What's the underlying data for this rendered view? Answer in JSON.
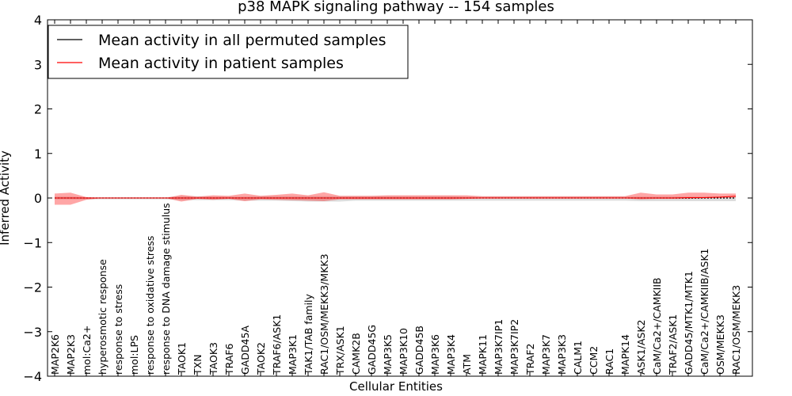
{
  "chart_data": {
    "type": "line",
    "title": "p38 MAPK signaling pathway -- 154 samples",
    "xlabel": "Cellular Entities",
    "ylabel": "Inferred Activity",
    "ylim": [
      -4,
      4
    ],
    "yticks": [
      "−4",
      "−3",
      "−2",
      "−1",
      "0",
      "1",
      "2",
      "3",
      "4"
    ],
    "grid": false,
    "legend_position": "top-left",
    "categories": [
      "MAP2K6",
      "MAP2K3",
      "mol:Ca2+",
      "hyperosmotic response",
      "response to stress",
      "mol:LPS",
      "response to oxidative stress",
      "response to DNA damage stimulus",
      "TAOK1",
      "TXN",
      "TAOK3",
      "TRAF6",
      "GADD45A",
      "TAOK2",
      "TRAF6/ASK1",
      "MAP3K1",
      "TAK1/TAB family",
      "RAC1/OSM/MEKK3/MKK3",
      "TRX/ASK1",
      "CAMK2B",
      "GADD45G",
      "MAP3K5",
      "MAP3K10",
      "GADD45B",
      "MAP3K6",
      "MAP3K4",
      "ATM",
      "MAPK11",
      "MAP3K7IP1",
      "MAP3K7IP2",
      "TRAF2",
      "MAP3K7",
      "MAP3K3",
      "CALM1",
      "CCM2",
      "RAC1",
      "MAPK14",
      "ASK1/ASK2",
      "CaM/Ca2+/CAMKIIB",
      "TRAF2/ASK1",
      "GADD45/MTK1/MTK1",
      "CaM/Ca2+/CAMKIIB/ASK1",
      "OSM/MEKK3",
      "RAC1/OSM/MEKK3"
    ],
    "series": [
      {
        "name": "Mean activity in all permuted samples",
        "color": "#000000",
        "values": [
          0,
          0,
          0,
          0,
          0,
          0,
          0,
          0,
          0,
          0,
          0,
          0,
          0,
          0,
          0,
          0,
          0,
          0,
          0,
          0,
          0,
          0,
          0,
          0,
          0,
          0,
          0,
          0,
          0,
          0,
          0,
          0,
          0,
          0,
          0,
          0,
          0,
          0,
          0,
          0,
          0,
          0,
          0,
          0
        ],
        "band_upper": [
          0.03,
          0.03,
          0.02,
          0.02,
          0.02,
          0.02,
          0.02,
          0.02,
          0.04,
          0.04,
          0.03,
          0.03,
          0.03,
          0.04,
          0.04,
          0.04,
          0.04,
          0.04,
          0.04,
          0.04,
          0.04,
          0.04,
          0.04,
          0.04,
          0.04,
          0.04,
          0.03,
          0.03,
          0.03,
          0.03,
          0.03,
          0.03,
          0.03,
          0.03,
          0.03,
          0.03,
          0.03,
          0.03,
          0.03,
          0.03,
          0.03,
          0.03,
          0.03,
          0.03
        ],
        "band_lower": [
          -0.03,
          -0.03,
          -0.03,
          -0.03,
          -0.03,
          -0.03,
          -0.03,
          -0.03,
          -0.05,
          -0.05,
          -0.05,
          -0.05,
          -0.06,
          -0.06,
          -0.06,
          -0.07,
          -0.08,
          -0.08,
          -0.08,
          -0.06,
          -0.06,
          -0.06,
          -0.06,
          -0.06,
          -0.06,
          -0.06,
          -0.06,
          -0.06,
          -0.06,
          -0.06,
          -0.06,
          -0.06,
          -0.06,
          -0.06,
          -0.06,
          -0.06,
          -0.06,
          -0.07,
          -0.07,
          -0.07,
          -0.07,
          -0.07,
          -0.07,
          -0.07
        ]
      },
      {
        "name": "Mean activity in patient samples",
        "color": "#ff0000",
        "values": [
          0,
          0,
          0,
          0,
          0,
          0,
          0,
          0,
          0,
          0,
          0,
          0,
          0,
          0,
          0,
          0,
          0,
          0,
          0,
          0,
          0,
          0,
          0,
          0,
          0,
          0,
          0,
          0,
          0,
          0,
          0,
          0,
          0,
          0,
          0,
          0,
          0,
          0,
          0,
          0,
          0.01,
          0.01,
          0.02,
          0.04
        ],
        "band_upper": [
          0.1,
          0.12,
          0.02,
          0.0,
          0.0,
          0.0,
          0.0,
          0.0,
          0.07,
          0.03,
          0.06,
          0.05,
          0.1,
          0.05,
          0.07,
          0.1,
          0.06,
          0.13,
          0.05,
          0.05,
          0.05,
          0.06,
          0.06,
          0.06,
          0.06,
          0.06,
          0.06,
          0.04,
          0.04,
          0.04,
          0.04,
          0.04,
          0.04,
          0.04,
          0.04,
          0.04,
          0.04,
          0.12,
          0.08,
          0.08,
          0.12,
          0.12,
          0.1,
          0.1
        ],
        "band_lower": [
          -0.15,
          -0.15,
          -0.04,
          0.0,
          0.0,
          0.0,
          0.0,
          0.0,
          -0.08,
          -0.02,
          -0.04,
          -0.02,
          -0.07,
          -0.03,
          -0.04,
          -0.05,
          -0.06,
          -0.07,
          -0.03,
          -0.03,
          -0.03,
          -0.03,
          -0.03,
          -0.03,
          -0.03,
          -0.03,
          -0.02,
          -0.01,
          -0.01,
          -0.01,
          -0.01,
          -0.01,
          -0.01,
          -0.01,
          -0.01,
          -0.01,
          -0.01,
          -0.03,
          -0.02,
          -0.02,
          -0.02,
          -0.01,
          0.0,
          0.01
        ]
      }
    ]
  }
}
